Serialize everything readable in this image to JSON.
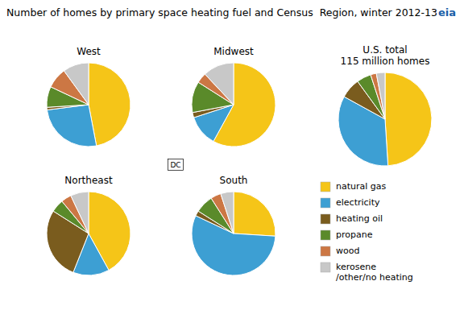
{
  "chart_data": {
    "type": "pie",
    "title": "Number of homes by primary space heating fuel and Census  Region, winter 2012-13",
    "categories": [
      "natural gas",
      "electricity",
      "heating oil",
      "propane",
      "wood",
      "kerosene\n/other/no heating"
    ],
    "colors": [
      "#f5c518",
      "#3d9fd3",
      "#7a5c1e",
      "#5a8a2a",
      "#cc7744",
      "#c8c8c8"
    ],
    "series": [
      {
        "name": "West",
        "values": [
          47,
          26,
          1,
          8,
          8,
          10
        ]
      },
      {
        "name": "Midwest",
        "values": [
          58,
          12,
          2,
          12,
          4,
          12
        ]
      },
      {
        "name": "Northeast",
        "values": [
          42,
          14,
          28,
          5,
          4,
          7
        ]
      },
      {
        "name": "South",
        "values": [
          26,
          56,
          2,
          7,
          4,
          5
        ]
      },
      {
        "name": "U.S. total\n115 million homes",
        "values": [
          49,
          34,
          7,
          5,
          2,
          3
        ]
      }
    ],
    "legend": "right",
    "annotations": [
      "DC",
      "eia"
    ]
  }
}
